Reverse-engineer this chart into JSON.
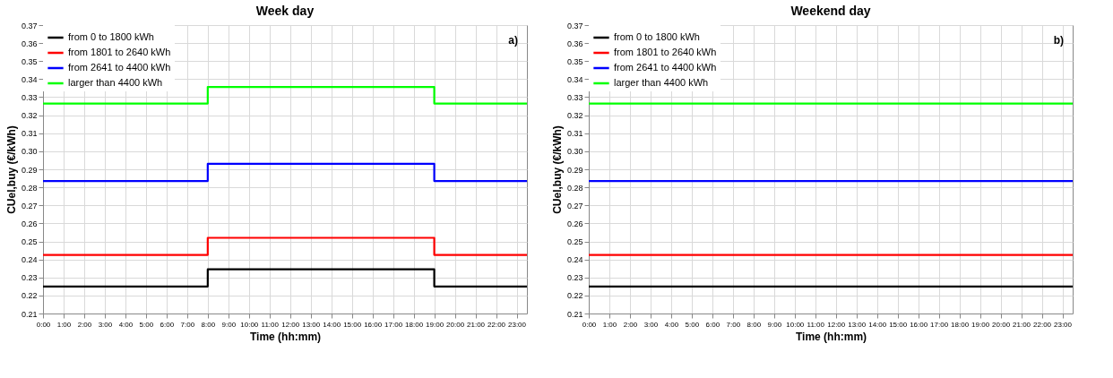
{
  "chart_data": [
    {
      "type": "step",
      "title": "Week day",
      "xlabel": "Time (hh:mm)",
      "ylabel": "CUel,buy (€/kWh)",
      "annotations": [
        "a)"
      ],
      "xlim": [
        0,
        23.5
      ],
      "xticks": [
        {
          "value": 0,
          "label": "0:00"
        },
        {
          "value": 1,
          "label": "1:00"
        },
        {
          "value": 2,
          "label": "2:00"
        },
        {
          "value": 3,
          "label": "3:00"
        },
        {
          "value": 4,
          "label": "4:00"
        },
        {
          "value": 5,
          "label": "5:00"
        },
        {
          "value": 6,
          "label": "6:00"
        },
        {
          "value": 7,
          "label": "7:00"
        },
        {
          "value": 8,
          "label": "8:00"
        },
        {
          "value": 9,
          "label": "9:00"
        },
        {
          "value": 10,
          "label": "10:00"
        },
        {
          "value": 11,
          "label": "11:00"
        },
        {
          "value": 12,
          "label": "12:00"
        },
        {
          "value": 13,
          "label": "13:00"
        },
        {
          "value": 14,
          "label": "14:00"
        },
        {
          "value": 15,
          "label": "15:00"
        },
        {
          "value": 16,
          "label": "16:00"
        },
        {
          "value": 17,
          "label": "17:00"
        },
        {
          "value": 18,
          "label": "18:00"
        },
        {
          "value": 19,
          "label": "19:00"
        },
        {
          "value": 20,
          "label": "20:00"
        },
        {
          "value": 21,
          "label": "21:00"
        },
        {
          "value": 22,
          "label": "22:00"
        },
        {
          "value": 23,
          "label": "23:00"
        }
      ],
      "ylim": [
        0.21,
        0.37
      ],
      "yticks": [
        0.21,
        0.22,
        0.23,
        0.24,
        0.25,
        0.26,
        0.27,
        0.28,
        0.29,
        {
          "value": 0.3,
          "label": "0.30"
        },
        0.31,
        0.32,
        0.33,
        0.34,
        0.35,
        0.36,
        0.37
      ],
      "grid": true,
      "legend": "top left",
      "line_style": "solid",
      "marker": "none",
      "series": [
        {
          "name": "from 0 to 1800 kWh",
          "color": "#000000",
          "x": [
            0,
            8,
            19,
            23.5
          ],
          "values": [
            0.225,
            0.2345,
            0.225,
            0.225
          ]
        },
        {
          "name": "from 1801 to 2640 kWh",
          "color": "#ff0000",
          "x": [
            0,
            8,
            19,
            23.5
          ],
          "values": [
            0.2425,
            0.252,
            0.2425,
            0.2425
          ]
        },
        {
          "name": "from 2641 to 4400 kWh",
          "color": "#0000ff",
          "x": [
            0,
            8,
            19,
            23.5
          ],
          "values": [
            0.2835,
            0.293,
            0.2835,
            0.2835
          ]
        },
        {
          "name": "larger than 4400 kWh",
          "color": "#00ff00",
          "x": [
            0,
            8,
            19,
            23.5
          ],
          "values": [
            0.3265,
            0.3357,
            0.3265,
            0.3265
          ]
        }
      ]
    },
    {
      "type": "step",
      "title": "Weekend day",
      "xlabel": "Time (hh:mm)",
      "ylabel": "CUel,buy (€/kWh)",
      "annotations": [
        "b)"
      ],
      "xlim": [
        0,
        23.5
      ],
      "xticks": [
        {
          "value": 0,
          "label": "0:00"
        },
        {
          "value": 1,
          "label": "1:00"
        },
        {
          "value": 2,
          "label": "2:00"
        },
        {
          "value": 3,
          "label": "3:00"
        },
        {
          "value": 4,
          "label": "4:00"
        },
        {
          "value": 5,
          "label": "5:00"
        },
        {
          "value": 6,
          "label": "6:00"
        },
        {
          "value": 7,
          "label": "7:00"
        },
        {
          "value": 8,
          "label": "8:00"
        },
        {
          "value": 9,
          "label": "9:00"
        },
        {
          "value": 10,
          "label": "10:00"
        },
        {
          "value": 11,
          "label": "11:00"
        },
        {
          "value": 12,
          "label": "12:00"
        },
        {
          "value": 13,
          "label": "13:00"
        },
        {
          "value": 14,
          "label": "14:00"
        },
        {
          "value": 15,
          "label": "15:00"
        },
        {
          "value": 16,
          "label": "16:00"
        },
        {
          "value": 17,
          "label": "17:00"
        },
        {
          "value": 18,
          "label": "18:00"
        },
        {
          "value": 19,
          "label": "19:00"
        },
        {
          "value": 20,
          "label": "20:00"
        },
        {
          "value": 21,
          "label": "21:00"
        },
        {
          "value": 22,
          "label": "22:00"
        },
        {
          "value": 23,
          "label": "23:00"
        }
      ],
      "ylim": [
        0.21,
        0.37
      ],
      "yticks": [
        0.21,
        0.22,
        0.23,
        0.24,
        0.25,
        0.26,
        0.27,
        0.28,
        0.29,
        {
          "value": 0.3,
          "label": "0.30"
        },
        0.31,
        0.32,
        0.33,
        0.34,
        0.35,
        0.36,
        0.37
      ],
      "grid": true,
      "legend": "top left",
      "line_style": "solid",
      "marker": "none",
      "series": [
        {
          "name": "from 0 to 1800 kWh",
          "color": "#000000",
          "x": [
            0,
            23.5
          ],
          "values": [
            0.225,
            0.225
          ]
        },
        {
          "name": "from 1801 to 2640 kWh",
          "color": "#ff0000",
          "x": [
            0,
            23.5
          ],
          "values": [
            0.2425,
            0.2425
          ]
        },
        {
          "name": "from 2641 to 4400 kWh",
          "color": "#0000ff",
          "x": [
            0,
            23.5
          ],
          "values": [
            0.2835,
            0.2835
          ]
        },
        {
          "name": "larger than 4400 kWh",
          "color": "#00ff00",
          "x": [
            0,
            23.5
          ],
          "values": [
            0.3265,
            0.3265
          ]
        }
      ]
    }
  ]
}
